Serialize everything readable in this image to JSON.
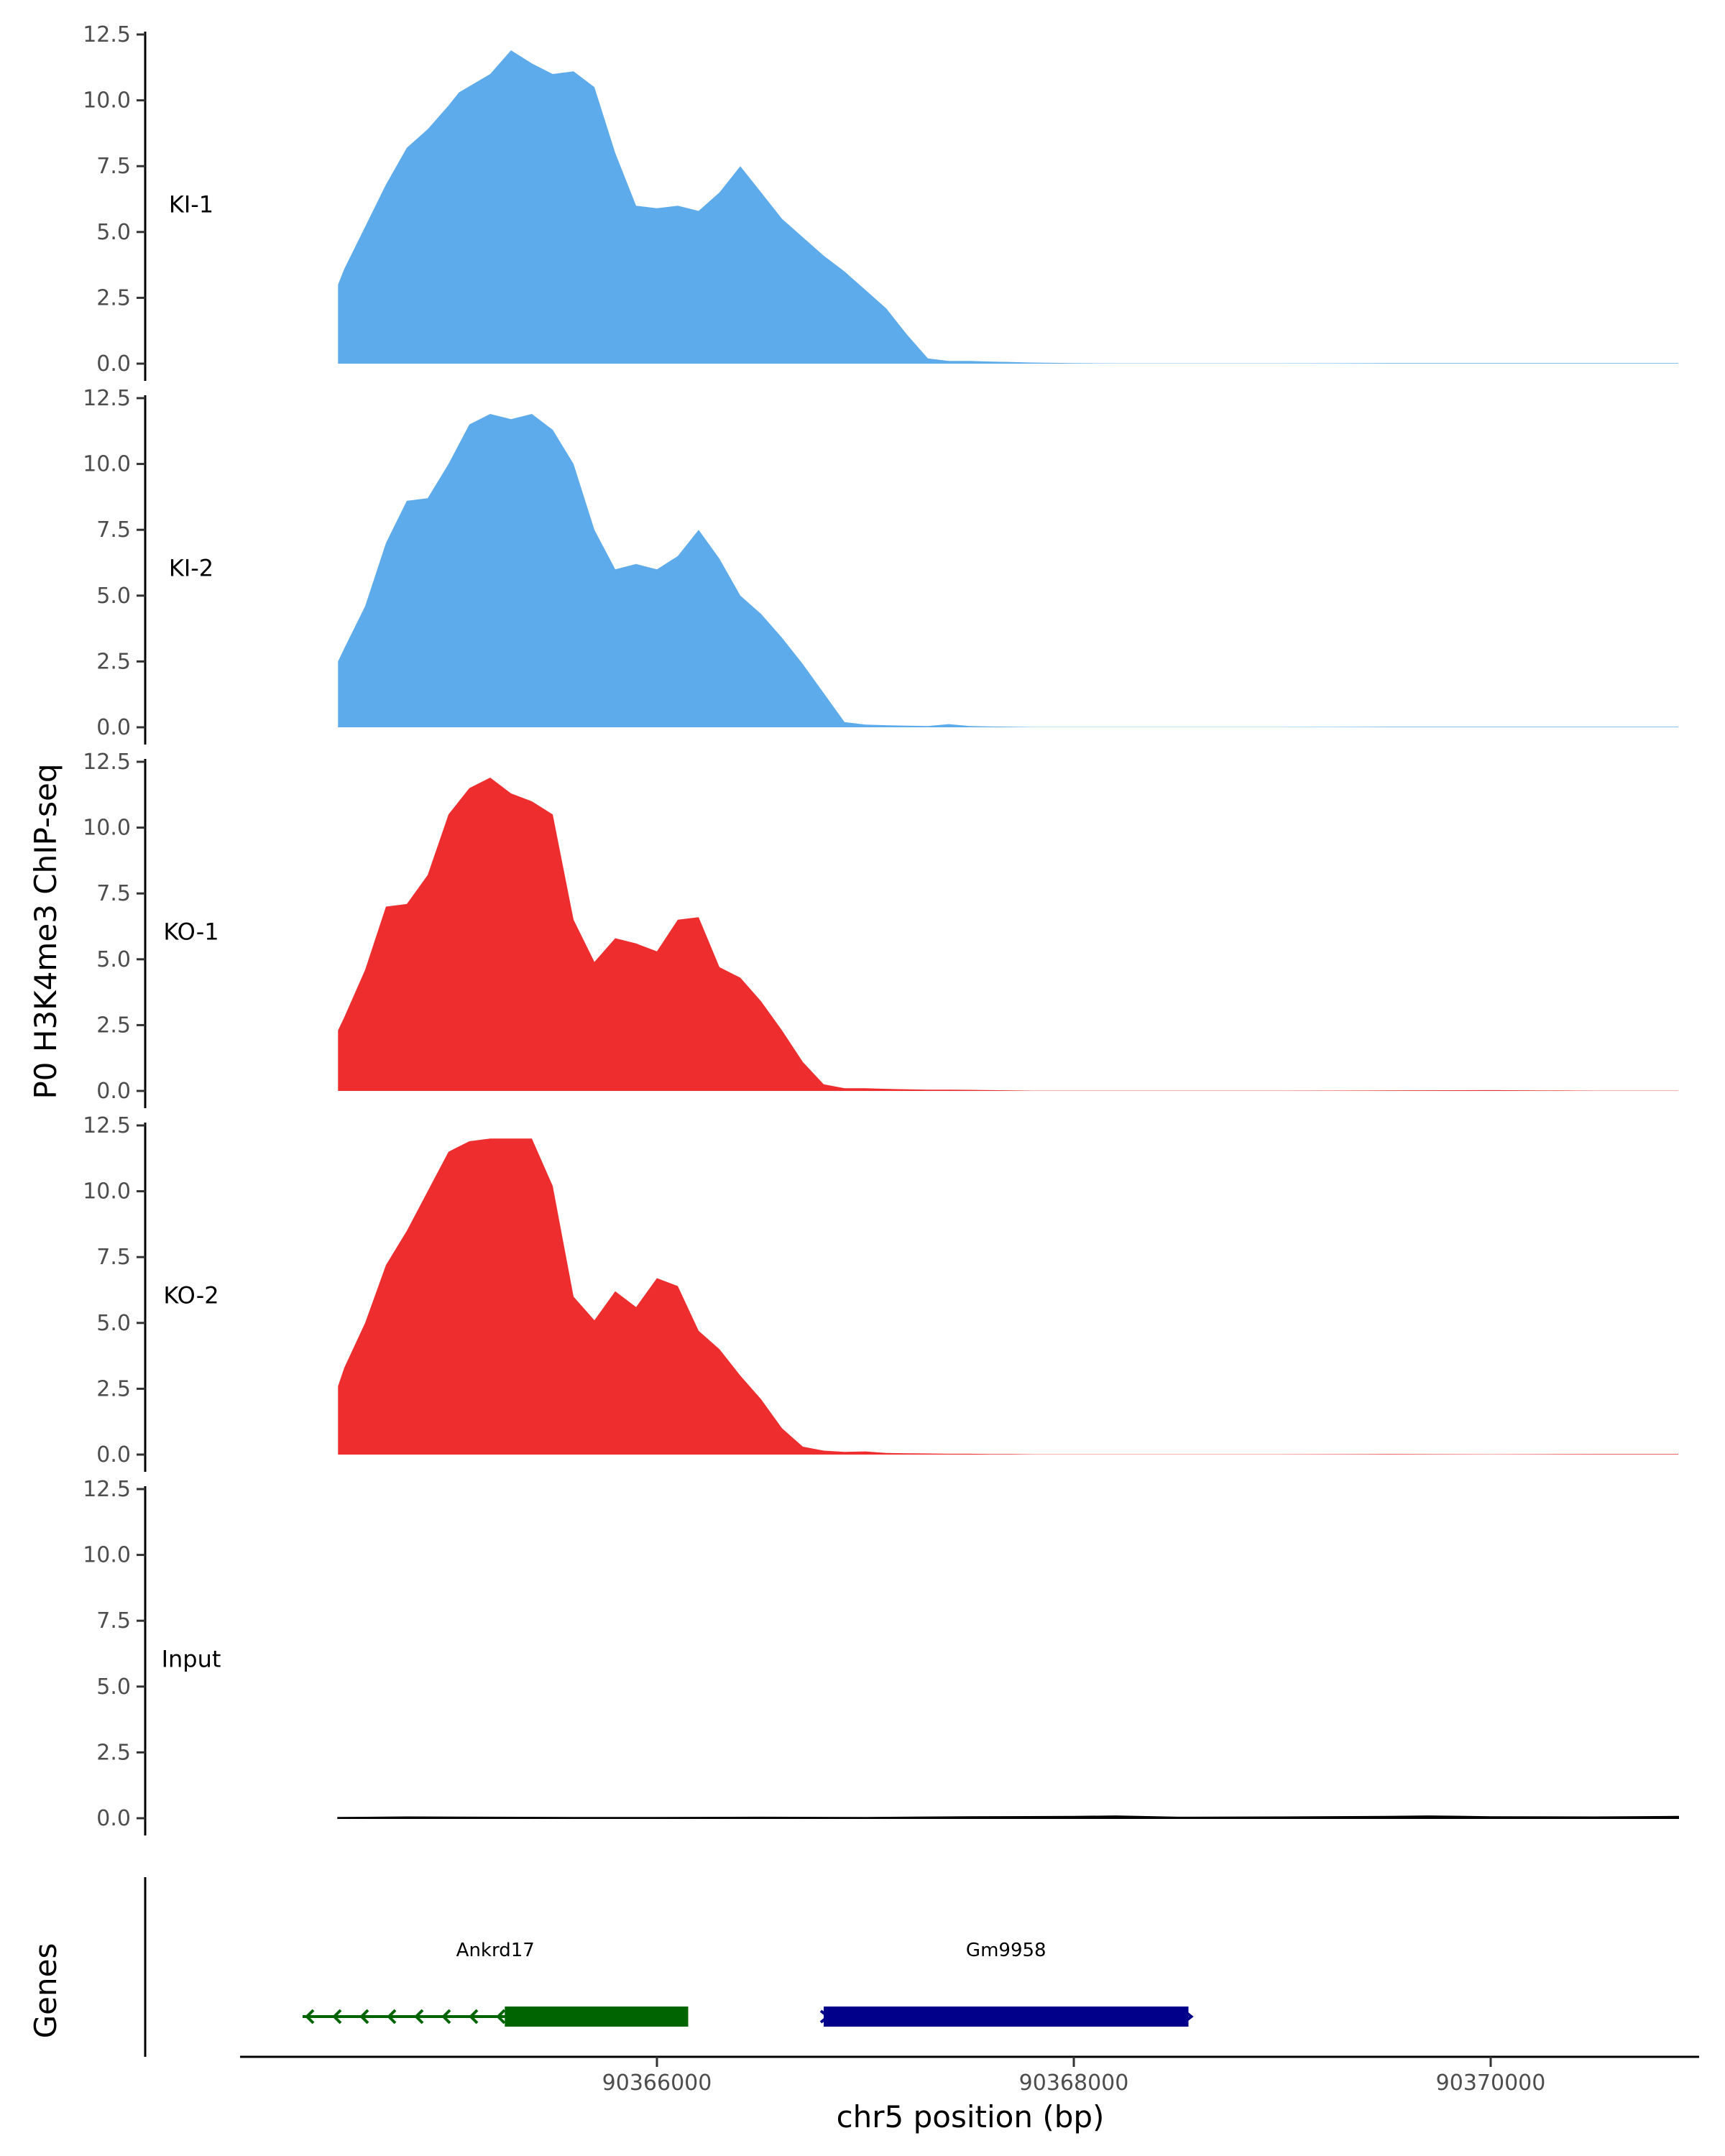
{
  "chart_data": {
    "type": "area",
    "ylabel": "P0 H3K4me3 ChIP-seq",
    "xlabel": "chr5 position (bp)",
    "xlim": [
      90364000,
      90371000
    ],
    "ylim": [
      0,
      12.5
    ],
    "yticks": [
      "0.0",
      "2.5",
      "5.0",
      "7.5",
      "10.0",
      "12.5"
    ],
    "xticks": [
      {
        "value": 90366000,
        "label": "90366000"
      },
      {
        "value": 90368000,
        "label": "90368000"
      },
      {
        "value": 90370000,
        "label": "90370000"
      }
    ],
    "colors": {
      "KI": "#5dabeb",
      "KO": "#ed2d2e",
      "Input": "#000000",
      "Ankrd17": "#006400",
      "Gm9958": "#00008b"
    },
    "tracks": [
      {
        "name": "KI-1",
        "color": "#5dabeb",
        "x": [
          90364470,
          90364500,
          90364600,
          90364700,
          90364800,
          90364900,
          90365000,
          90365050,
          90365200,
          90365300,
          90365400,
          90365500,
          90365600,
          90365700,
          90365800,
          90365900,
          90366000,
          90366100,
          90366200,
          90366300,
          90366400,
          90366500,
          90366600,
          90366700,
          90366800,
          90366900,
          90367000,
          90367100,
          90367200,
          90367300,
          90367400,
          90367500,
          90367600,
          90367700,
          90367800,
          90367900,
          90368000,
          90368200,
          90368500,
          90369000,
          90369500,
          90370000,
          90370500,
          90370900
        ],
        "y": [
          3.0,
          3.6,
          5.2,
          6.8,
          8.2,
          8.9,
          9.8,
          10.3,
          11.0,
          11.9,
          11.4,
          11.0,
          11.1,
          10.5,
          8.0,
          6.0,
          5.9,
          6.0,
          5.8,
          6.5,
          7.5,
          6.5,
          5.5,
          4.8,
          4.1,
          3.5,
          2.8,
          2.1,
          1.1,
          0.2,
          0.1,
          0.1,
          0.08,
          0.06,
          0.04,
          0.03,
          0.02,
          0.01,
          0.01,
          0.01,
          0.02,
          0.02,
          0.02,
          0.02
        ]
      },
      {
        "name": "KI-2",
        "color": "#5dabeb",
        "x": [
          90364470,
          90364500,
          90364600,
          90364700,
          90364800,
          90364900,
          90365000,
          90365100,
          90365200,
          90365300,
          90365400,
          90365500,
          90365600,
          90365700,
          90365800,
          90365900,
          90366000,
          90366100,
          90366200,
          90366300,
          90366400,
          90366500,
          90366600,
          90366700,
          90366800,
          90366900,
          90367000,
          90367100,
          90367200,
          90367300,
          90367400,
          90367500,
          90367600,
          90367700,
          90367800,
          90367900,
          90368000,
          90368200,
          90368500,
          90369000,
          90369500,
          90370000,
          90370500,
          90370900
        ],
        "y": [
          2.5,
          3.0,
          4.6,
          7.0,
          8.6,
          8.7,
          10.0,
          11.5,
          11.9,
          11.7,
          11.9,
          11.3,
          10.0,
          7.5,
          6.0,
          6.2,
          6.0,
          6.5,
          7.5,
          6.4,
          5.0,
          4.3,
          3.4,
          2.4,
          1.3,
          0.2,
          0.1,
          0.08,
          0.06,
          0.05,
          0.12,
          0.05,
          0.03,
          0.02,
          0.01,
          0.01,
          0.01,
          0.01,
          0.01,
          0.01,
          0.02,
          0.02,
          0.02,
          0.02
        ]
      },
      {
        "name": "KO-1",
        "color": "#ed2d2e",
        "x": [
          90364470,
          90364500,
          90364600,
          90364700,
          90364800,
          90364900,
          90365000,
          90365100,
          90365200,
          90365300,
          90365400,
          90365500,
          90365600,
          90365700,
          90365800,
          90365900,
          90366000,
          90366100,
          90366200,
          90366300,
          90366400,
          90366500,
          90366600,
          90366700,
          90366800,
          90366900,
          90367000,
          90367100,
          90367200,
          90367300,
          90367400,
          90367500,
          90367600,
          90367700,
          90367800,
          90367900,
          90368000,
          90368200,
          90368500,
          90369000,
          90369500,
          90370000,
          90370500,
          90370900
        ],
        "y": [
          2.3,
          2.8,
          4.6,
          7.0,
          7.1,
          8.2,
          10.5,
          11.5,
          11.9,
          11.3,
          11.0,
          10.5,
          6.5,
          4.9,
          5.8,
          5.6,
          5.3,
          6.5,
          6.6,
          4.7,
          4.3,
          3.4,
          2.3,
          1.1,
          0.25,
          0.1,
          0.1,
          0.08,
          0.06,
          0.05,
          0.05,
          0.04,
          0.03,
          0.02,
          0.01,
          0.01,
          0.01,
          0.01,
          0.01,
          0.01,
          0.02,
          0.03,
          0.01,
          0.01
        ]
      },
      {
        "name": "KO-2",
        "color": "#ed2d2e",
        "x": [
          90364470,
          90364500,
          90364600,
          90364700,
          90364800,
          90364900,
          90365000,
          90365100,
          90365200,
          90365300,
          90365400,
          90365500,
          90365600,
          90365700,
          90365800,
          90365900,
          90366000,
          90366100,
          90366200,
          90366300,
          90366400,
          90366500,
          90366600,
          90366700,
          90366800,
          90366900,
          90367000,
          90367100,
          90367200,
          90367300,
          90367400,
          90367500,
          90367600,
          90367700,
          90367800,
          90367900,
          90368000,
          90368200,
          90368500,
          90369000,
          90369500,
          90370000,
          90370500,
          90370900
        ],
        "y": [
          2.6,
          3.3,
          5.0,
          7.2,
          8.5,
          10.0,
          11.5,
          11.9,
          12.0,
          12.0,
          12.0,
          10.2,
          6.0,
          5.1,
          6.2,
          5.6,
          6.7,
          6.4,
          4.7,
          4.0,
          3.0,
          2.1,
          1.0,
          0.3,
          0.15,
          0.1,
          0.12,
          0.06,
          0.05,
          0.04,
          0.03,
          0.03,
          0.02,
          0.02,
          0.01,
          0.01,
          0.01,
          0.01,
          0.01,
          0.01,
          0.02,
          0.01,
          0.02,
          0.02
        ]
      },
      {
        "name": "Input",
        "color": "#000000",
        "x": [
          90364470,
          90364800,
          90365200,
          90365600,
          90366000,
          90366500,
          90367000,
          90367500,
          90368000,
          90368200,
          90368500,
          90369000,
          90369500,
          90369700,
          90370000,
          90370500,
          90370900
        ],
        "y": [
          0.02,
          0.04,
          0.03,
          0.02,
          0.02,
          0.03,
          0.02,
          0.05,
          0.06,
          0.08,
          0.03,
          0.04,
          0.06,
          0.08,
          0.05,
          0.04,
          0.06
        ]
      }
    ],
    "genes": [
      {
        "name": "Ankrd17",
        "color": "#006400",
        "strand": "-",
        "start": 90364300,
        "end": 90366150,
        "thick_start": 90365270,
        "thick_end": 90366150
      },
      {
        "name": "Gm9958",
        "color": "#00008b",
        "strand": "+",
        "start": 90366800,
        "end": 90368550,
        "thick_start": 90366800,
        "thick_end": 90368550
      }
    ],
    "genes_label": "Genes"
  }
}
